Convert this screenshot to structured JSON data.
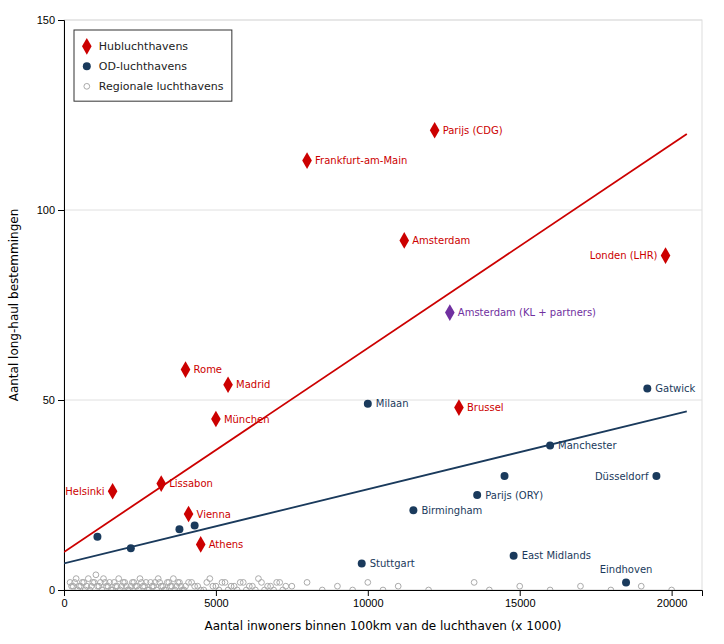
{
  "chart_data": {
    "type": "scatter",
    "xlabel": "Aantal inwoners binnen 100km van de luchthaven (x 1000)",
    "ylabel": "Aantal long-haul bestemmingen",
    "xlim": [
      0,
      21000
    ],
    "ylim": [
      0,
      150
    ],
    "xticks": [
      0,
      5000,
      10000,
      15000,
      20000
    ],
    "yticks": [
      0,
      50,
      100,
      150
    ],
    "grid": "y",
    "legend": "upper left",
    "series": [
      {
        "name": "Hubluchthavens",
        "color": "#cc0000",
        "marker": "diamond",
        "x": [
          8000,
          12200,
          11200,
          19800,
          4000,
          5400,
          5000,
          13000,
          3200,
          1600,
          4100,
          4500
        ],
        "values": [
          113,
          121,
          92,
          88,
          58,
          54,
          45,
          48,
          28,
          26,
          20,
          12
        ],
        "labels": [
          "Frankfurt-am-Main",
          "Parijs (CDG)",
          "Amsterdam",
          "Londen (LHR)",
          "Rome",
          "Madrid",
          "München",
          "Brussel",
          "Lissabon",
          "Helsinki",
          "Vienna",
          "Athens"
        ]
      },
      {
        "name": "OD-luchthavens",
        "color": "#1a3a5c",
        "marker": "circle",
        "x": [
          10000,
          19200,
          16000,
          19500,
          13600,
          11500,
          14800,
          18500,
          9800,
          4300,
          1100,
          2200,
          3800,
          14500
        ],
        "values": [
          49,
          53,
          38,
          30,
          25,
          21,
          9,
          2,
          7,
          17,
          14,
          11,
          16,
          30
        ],
        "labels": [
          "Milaan",
          "Gatwick",
          "Manchester",
          "Düsseldorf",
          "Parijs (ORY)",
          "Birmingham",
          "East Midlands",
          "Eindhoven",
          "Stuttgart",
          null,
          null,
          null,
          null,
          null
        ]
      },
      {
        "name": "Regionale luchthavens",
        "color": "#aaaaaa",
        "marker": "circle-open",
        "x": [
          200,
          300,
          400,
          500,
          600,
          700,
          800,
          900,
          1000,
          1050,
          1100,
          1200,
          1300,
          1400,
          1500,
          1600,
          1700,
          1800,
          1900,
          2000,
          2100,
          2200,
          2300,
          2400,
          2500,
          2600,
          2700,
          2800,
          2900,
          3000,
          3100,
          3200,
          3300,
          3400,
          3500,
          3600,
          3700,
          3800,
          3900,
          4000,
          4200,
          4400,
          4600,
          4800,
          5000,
          5200,
          5400,
          5600,
          5800,
          6000,
          6200,
          6400,
          6600,
          6800,
          7000,
          7200,
          7500,
          8000,
          8500,
          9000,
          9500,
          10000,
          10500,
          11000,
          12000,
          13500,
          14000,
          15000,
          16000,
          17000,
          18000,
          19000,
          20000,
          250,
          350,
          450,
          550,
          650,
          750,
          850,
          950,
          1150,
          1250,
          1350,
          1450,
          1550,
          1650,
          1750,
          1850,
          1950,
          2050,
          2150,
          2250,
          2350,
          2450,
          2550,
          2650,
          2750,
          2850,
          2950,
          3050,
          3150,
          3250,
          3350,
          3450,
          3550,
          3650,
          3750,
          3850,
          3950,
          4100,
          4300,
          4500,
          4700,
          4900,
          5100,
          5300,
          5500,
          5700,
          5900,
          6100,
          6300,
          6500,
          6700,
          6900,
          7100,
          7300
        ],
        "values": [
          2,
          1,
          3,
          1,
          2,
          0,
          3,
          1,
          2,
          4,
          1,
          2,
          3,
          1,
          2,
          0,
          1,
          3,
          1,
          2,
          0,
          1,
          2,
          1,
          3,
          1,
          2,
          0,
          1,
          2,
          3,
          1,
          0,
          2,
          1,
          3,
          1,
          2,
          0,
          1,
          2,
          1,
          0,
          3,
          1,
          2,
          0,
          1,
          2,
          0,
          1,
          3,
          0,
          1,
          2,
          0,
          1,
          2,
          0,
          1,
          0,
          2,
          0,
          1,
          0,
          2,
          0,
          1,
          0,
          1,
          0,
          1,
          0,
          1,
          2,
          0,
          1,
          2,
          1,
          0,
          2,
          1,
          0,
          2,
          1,
          0,
          2,
          1,
          0,
          2,
          1,
          0,
          2,
          1,
          0,
          2,
          1,
          0,
          2,
          1,
          0,
          2,
          1,
          0,
          2,
          1,
          0,
          2,
          1,
          0,
          2,
          1,
          0,
          2,
          1,
          0,
          2,
          1,
          0,
          2,
          1,
          0,
          2,
          1,
          0,
          2,
          1
        ]
      },
      {
        "color": "#7030a0",
        "marker": "diamond",
        "x": [
          12700
        ],
        "values": [
          73
        ],
        "labels": [
          "Amsterdam (KL + partners)"
        ]
      },
      {
        "type": "line",
        "color": "#cc0000",
        "x": [
          0,
          20500
        ],
        "values": [
          10,
          120
        ]
      },
      {
        "type": "line",
        "color": "#1a3a5c",
        "x": [
          0,
          20500
        ],
        "values": [
          7,
          47
        ]
      }
    ]
  }
}
